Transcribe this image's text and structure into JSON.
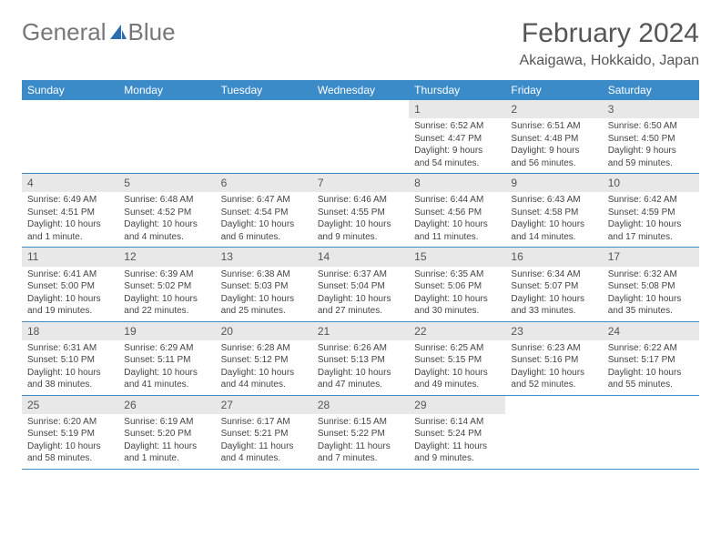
{
  "logo": {
    "text1": "General",
    "text2": "Blue"
  },
  "header": {
    "month": "February 2024",
    "location": "Akaigawa, Hokkaido, Japan"
  },
  "colors": {
    "header_bg": "#3b8bc9",
    "header_text": "#ffffff",
    "daynum_bg": "#e8e8e8",
    "text": "#444444",
    "rule": "#3b8bc9",
    "logo_gray": "#777777",
    "logo_blue": "#2a6db0"
  },
  "weekdays": [
    "Sunday",
    "Monday",
    "Tuesday",
    "Wednesday",
    "Thursday",
    "Friday",
    "Saturday"
  ],
  "weeks": [
    [
      {
        "n": "",
        "sr": "",
        "ss": "",
        "dl": ""
      },
      {
        "n": "",
        "sr": "",
        "ss": "",
        "dl": ""
      },
      {
        "n": "",
        "sr": "",
        "ss": "",
        "dl": ""
      },
      {
        "n": "",
        "sr": "",
        "ss": "",
        "dl": ""
      },
      {
        "n": "1",
        "sr": "Sunrise: 6:52 AM",
        "ss": "Sunset: 4:47 PM",
        "dl": "Daylight: 9 hours and 54 minutes."
      },
      {
        "n": "2",
        "sr": "Sunrise: 6:51 AM",
        "ss": "Sunset: 4:48 PM",
        "dl": "Daylight: 9 hours and 56 minutes."
      },
      {
        "n": "3",
        "sr": "Sunrise: 6:50 AM",
        "ss": "Sunset: 4:50 PM",
        "dl": "Daylight: 9 hours and 59 minutes."
      }
    ],
    [
      {
        "n": "4",
        "sr": "Sunrise: 6:49 AM",
        "ss": "Sunset: 4:51 PM",
        "dl": "Daylight: 10 hours and 1 minute."
      },
      {
        "n": "5",
        "sr": "Sunrise: 6:48 AM",
        "ss": "Sunset: 4:52 PM",
        "dl": "Daylight: 10 hours and 4 minutes."
      },
      {
        "n": "6",
        "sr": "Sunrise: 6:47 AM",
        "ss": "Sunset: 4:54 PM",
        "dl": "Daylight: 10 hours and 6 minutes."
      },
      {
        "n": "7",
        "sr": "Sunrise: 6:46 AM",
        "ss": "Sunset: 4:55 PM",
        "dl": "Daylight: 10 hours and 9 minutes."
      },
      {
        "n": "8",
        "sr": "Sunrise: 6:44 AM",
        "ss": "Sunset: 4:56 PM",
        "dl": "Daylight: 10 hours and 11 minutes."
      },
      {
        "n": "9",
        "sr": "Sunrise: 6:43 AM",
        "ss": "Sunset: 4:58 PM",
        "dl": "Daylight: 10 hours and 14 minutes."
      },
      {
        "n": "10",
        "sr": "Sunrise: 6:42 AM",
        "ss": "Sunset: 4:59 PM",
        "dl": "Daylight: 10 hours and 17 minutes."
      }
    ],
    [
      {
        "n": "11",
        "sr": "Sunrise: 6:41 AM",
        "ss": "Sunset: 5:00 PM",
        "dl": "Daylight: 10 hours and 19 minutes."
      },
      {
        "n": "12",
        "sr": "Sunrise: 6:39 AM",
        "ss": "Sunset: 5:02 PM",
        "dl": "Daylight: 10 hours and 22 minutes."
      },
      {
        "n": "13",
        "sr": "Sunrise: 6:38 AM",
        "ss": "Sunset: 5:03 PM",
        "dl": "Daylight: 10 hours and 25 minutes."
      },
      {
        "n": "14",
        "sr": "Sunrise: 6:37 AM",
        "ss": "Sunset: 5:04 PM",
        "dl": "Daylight: 10 hours and 27 minutes."
      },
      {
        "n": "15",
        "sr": "Sunrise: 6:35 AM",
        "ss": "Sunset: 5:06 PM",
        "dl": "Daylight: 10 hours and 30 minutes."
      },
      {
        "n": "16",
        "sr": "Sunrise: 6:34 AM",
        "ss": "Sunset: 5:07 PM",
        "dl": "Daylight: 10 hours and 33 minutes."
      },
      {
        "n": "17",
        "sr": "Sunrise: 6:32 AM",
        "ss": "Sunset: 5:08 PM",
        "dl": "Daylight: 10 hours and 35 minutes."
      }
    ],
    [
      {
        "n": "18",
        "sr": "Sunrise: 6:31 AM",
        "ss": "Sunset: 5:10 PM",
        "dl": "Daylight: 10 hours and 38 minutes."
      },
      {
        "n": "19",
        "sr": "Sunrise: 6:29 AM",
        "ss": "Sunset: 5:11 PM",
        "dl": "Daylight: 10 hours and 41 minutes."
      },
      {
        "n": "20",
        "sr": "Sunrise: 6:28 AM",
        "ss": "Sunset: 5:12 PM",
        "dl": "Daylight: 10 hours and 44 minutes."
      },
      {
        "n": "21",
        "sr": "Sunrise: 6:26 AM",
        "ss": "Sunset: 5:13 PM",
        "dl": "Daylight: 10 hours and 47 minutes."
      },
      {
        "n": "22",
        "sr": "Sunrise: 6:25 AM",
        "ss": "Sunset: 5:15 PM",
        "dl": "Daylight: 10 hours and 49 minutes."
      },
      {
        "n": "23",
        "sr": "Sunrise: 6:23 AM",
        "ss": "Sunset: 5:16 PM",
        "dl": "Daylight: 10 hours and 52 minutes."
      },
      {
        "n": "24",
        "sr": "Sunrise: 6:22 AM",
        "ss": "Sunset: 5:17 PM",
        "dl": "Daylight: 10 hours and 55 minutes."
      }
    ],
    [
      {
        "n": "25",
        "sr": "Sunrise: 6:20 AM",
        "ss": "Sunset: 5:19 PM",
        "dl": "Daylight: 10 hours and 58 minutes."
      },
      {
        "n": "26",
        "sr": "Sunrise: 6:19 AM",
        "ss": "Sunset: 5:20 PM",
        "dl": "Daylight: 11 hours and 1 minute."
      },
      {
        "n": "27",
        "sr": "Sunrise: 6:17 AM",
        "ss": "Sunset: 5:21 PM",
        "dl": "Daylight: 11 hours and 4 minutes."
      },
      {
        "n": "28",
        "sr": "Sunrise: 6:15 AM",
        "ss": "Sunset: 5:22 PM",
        "dl": "Daylight: 11 hours and 7 minutes."
      },
      {
        "n": "29",
        "sr": "Sunrise: 6:14 AM",
        "ss": "Sunset: 5:24 PM",
        "dl": "Daylight: 11 hours and 9 minutes."
      },
      {
        "n": "",
        "sr": "",
        "ss": "",
        "dl": ""
      },
      {
        "n": "",
        "sr": "",
        "ss": "",
        "dl": ""
      }
    ]
  ]
}
